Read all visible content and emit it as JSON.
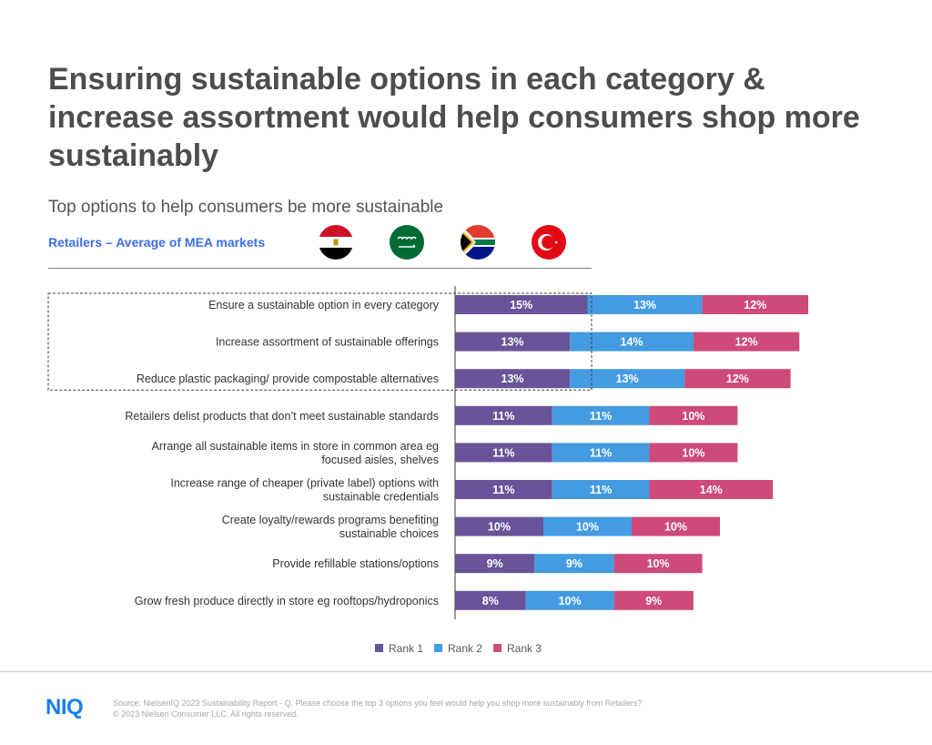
{
  "header": {
    "title": "Ensuring sustainable options in each category & increase assortment would help consumers shop more sustainably",
    "subtitle": "Top options to help consumers be more sustainable",
    "retailers_label": "Retailers – Average of MEA markets"
  },
  "flags": [
    "egypt-flag",
    "saudi-arabia-flag",
    "south-africa-flag",
    "turkey-flag"
  ],
  "colors": {
    "rank1": "#6a5499",
    "rank2": "#449be2",
    "rank3": "#cd4a7b"
  },
  "chart_data": {
    "type": "bar",
    "orientation": "horizontal",
    "stacked": true,
    "categories": [
      "Ensure a sustainable option in every category",
      "Increase assortment of sustainable offerings",
      "Reduce plastic packaging/ provide compostable alternatives",
      "Retailers delist products that don’t meet sustainable standards",
      "Arrange all sustainable items in store in common area eg focused aisles, shelves",
      "Increase range of cheaper (private label) options with sustainable credentials",
      "Create loyalty/rewards programs benefiting sustainable choices",
      "Provide refillable stations/options",
      "Grow fresh produce directly in store eg rooftops/hydroponics"
    ],
    "category_lines": [
      [
        "Ensure a sustainable option in every category"
      ],
      [
        "Increase assortment of sustainable offerings"
      ],
      [
        "Reduce plastic packaging/ provide compostable alternatives"
      ],
      [
        "Retailers delist products that don’t meet sustainable standards"
      ],
      [
        "Arrange all sustainable items in store in common area eg",
        "focused aisles, shelves"
      ],
      [
        "Increase range of cheaper (private label) options with",
        "sustainable credentials"
      ],
      [
        "Create loyalty/rewards programs benefiting",
        "sustainable choices"
      ],
      [
        "Provide refillable stations/options"
      ],
      [
        "Grow fresh produce directly in store eg rooftops/hydroponics"
      ]
    ],
    "series": [
      {
        "name": "Rank 1",
        "values": [
          15,
          13,
          13,
          11,
          11,
          11,
          10,
          9,
          8
        ]
      },
      {
        "name": "Rank 2",
        "values": [
          13,
          14,
          13,
          11,
          11,
          11,
          10,
          9,
          10
        ]
      },
      {
        "name": "Rank 3",
        "values": [
          12,
          12,
          12,
          10,
          10,
          14,
          10,
          10,
          9
        ]
      }
    ],
    "value_suffix": "%",
    "highlighted_categories": [
      0,
      1,
      2
    ],
    "legend_position": "bottom"
  },
  "footer": {
    "logo": "NIQ",
    "source": "Source: NielsenIQ 2023 Sustainability Report -  Q. Please choose the top 3 options you feel would help you shop more sustainably from Retailers?",
    "copyright": "© 2023 Nielsen Consumer LLC. All rights reserved."
  }
}
